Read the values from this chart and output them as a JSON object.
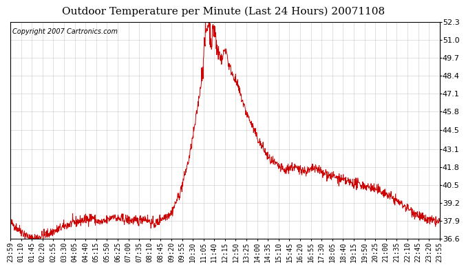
{
  "title": "Outdoor Temperature per Minute (Last 24 Hours) 20071108",
  "copyright_text": "Copyright 2007 Cartronics.com",
  "line_color": "#cc0000",
  "bg_color": "#ffffff",
  "plot_bg_color": "#ffffff",
  "grid_color": "#c8c8c8",
  "yticks": [
    36.6,
    37.9,
    39.2,
    40.5,
    41.8,
    43.1,
    44.5,
    45.8,
    47.1,
    48.4,
    49.7,
    51.0,
    52.3
  ],
  "ylim": [
    36.6,
    52.3
  ],
  "xtick_labels": [
    "23:59",
    "01:10",
    "01:45",
    "02:20",
    "02:55",
    "03:30",
    "04:05",
    "04:40",
    "05:15",
    "05:50",
    "06:25",
    "07:00",
    "07:35",
    "08:10",
    "08:45",
    "09:20",
    "09:55",
    "10:30",
    "11:05",
    "11:40",
    "12:15",
    "12:50",
    "13:25",
    "14:00",
    "14:35",
    "15:10",
    "15:45",
    "16:20",
    "16:55",
    "17:30",
    "18:05",
    "18:40",
    "19:15",
    "19:50",
    "20:25",
    "21:00",
    "21:35",
    "22:10",
    "22:45",
    "23:20",
    "23:55"
  ],
  "title_fontsize": 11,
  "copyright_fontsize": 7,
  "tick_fontsize": 7,
  "ytick_fontsize": 8
}
